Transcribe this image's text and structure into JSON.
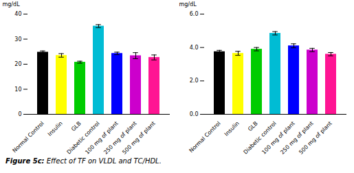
{
  "chart_data": [
    {
      "type": "bar",
      "ylabel": "mg/dL",
      "ylim": [
        0,
        40
      ],
      "yticks": [
        0,
        10,
        20,
        30,
        40
      ],
      "categories": [
        "Normal Control",
        "Insulin",
        "GLB",
        "Diabetic control",
        "100 mg of plant",
        "250 mg of plant",
        "500 mg of plant"
      ],
      "values": [
        24.8,
        23.5,
        20.8,
        35.2,
        24.3,
        23.4,
        22.7
      ],
      "errors": [
        0.5,
        0.7,
        0.4,
        0.6,
        0.5,
        1.2,
        1.0
      ],
      "colors": [
        "#000000",
        "#ffff00",
        "#00cc00",
        "#00bcd4",
        "#0000ff",
        "#cc00cc",
        "#ff1493"
      ]
    },
    {
      "type": "bar",
      "ylabel": "mg/dL",
      "ylim": [
        0,
        6
      ],
      "yticks": [
        0,
        2,
        4,
        6
      ],
      "categories": [
        "Normal Control",
        "Insulin",
        "GLB",
        "Diabetic control",
        "100 mg of plant",
        "250 mg of plant",
        "500 mg of plant"
      ],
      "values": [
        3.75,
        3.65,
        3.9,
        4.85,
        4.1,
        3.85,
        3.6
      ],
      "errors": [
        0.08,
        0.12,
        0.1,
        0.1,
        0.12,
        0.1,
        0.1
      ],
      "colors": [
        "#000000",
        "#ffff00",
        "#00cc00",
        "#00bcd4",
        "#0000ff",
        "#cc00cc",
        "#ff1493"
      ]
    }
  ],
  "caption": "Figure 5c: Effect of TF on VLDL and TC/HDL."
}
